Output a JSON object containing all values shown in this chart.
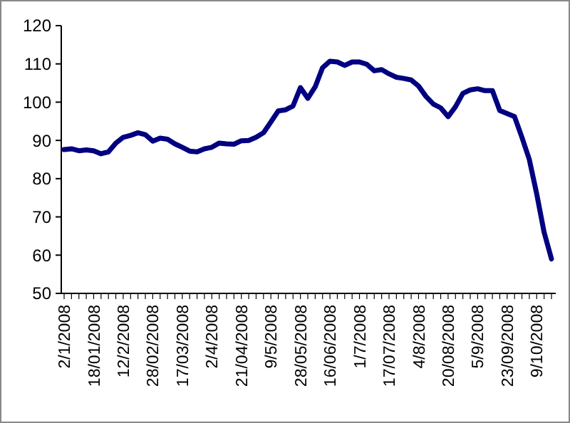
{
  "chart_data": {
    "type": "line",
    "categories": [
      "2/1/2008",
      null,
      null,
      null,
      "18/01/2008",
      null,
      null,
      null,
      "12/2/2008",
      null,
      null,
      null,
      "28/02/2008",
      null,
      null,
      null,
      "17/03/2008",
      null,
      null,
      null,
      "2/4/2008",
      null,
      null,
      null,
      "21/04/2008",
      null,
      null,
      null,
      "9/5/2008",
      null,
      null,
      null,
      "28/05/2008",
      null,
      null,
      null,
      "16/06/2008",
      null,
      null,
      null,
      "1/7/2008",
      null,
      null,
      null,
      "17/07/2008",
      null,
      null,
      null,
      "4/8/2008",
      null,
      null,
      null,
      "20/08/2008",
      null,
      null,
      null,
      "5/9/2008",
      null,
      null,
      null,
      "23/09/2008",
      null,
      null,
      null,
      "9/10/2008",
      null,
      null
    ],
    "series": [
      {
        "color": "#000080",
        "values": [
          87.6,
          87.8,
          87.3,
          87.5,
          87.3,
          86.5,
          87,
          89.3,
          90.8,
          91.3,
          92,
          91.5,
          89.8,
          90.6,
          90.3,
          89.1,
          88.2,
          87.2,
          87,
          87.8,
          88.2,
          89.3,
          89.1,
          89,
          89.9,
          90,
          90.8,
          92,
          94.8,
          97.7,
          98,
          99,
          103.8,
          101,
          104,
          109,
          110.7,
          110.5,
          109.6,
          110.5,
          110.5,
          109.9,
          108.2,
          108.5,
          107.4,
          106.5,
          106.2,
          105.8,
          104.2,
          101.5,
          99.5,
          98.5,
          96.2,
          98.8,
          102.3,
          103.2,
          103.5,
          103,
          103,
          97.8,
          97,
          96.2,
          90.8,
          85,
          76,
          66,
          59
        ]
      }
    ],
    "ylim": [
      50,
      120
    ],
    "yticks": [
      50,
      60,
      70,
      80,
      90,
      100,
      110,
      120
    ],
    "grid": false,
    "marker": "none",
    "line_style": "solid"
  }
}
